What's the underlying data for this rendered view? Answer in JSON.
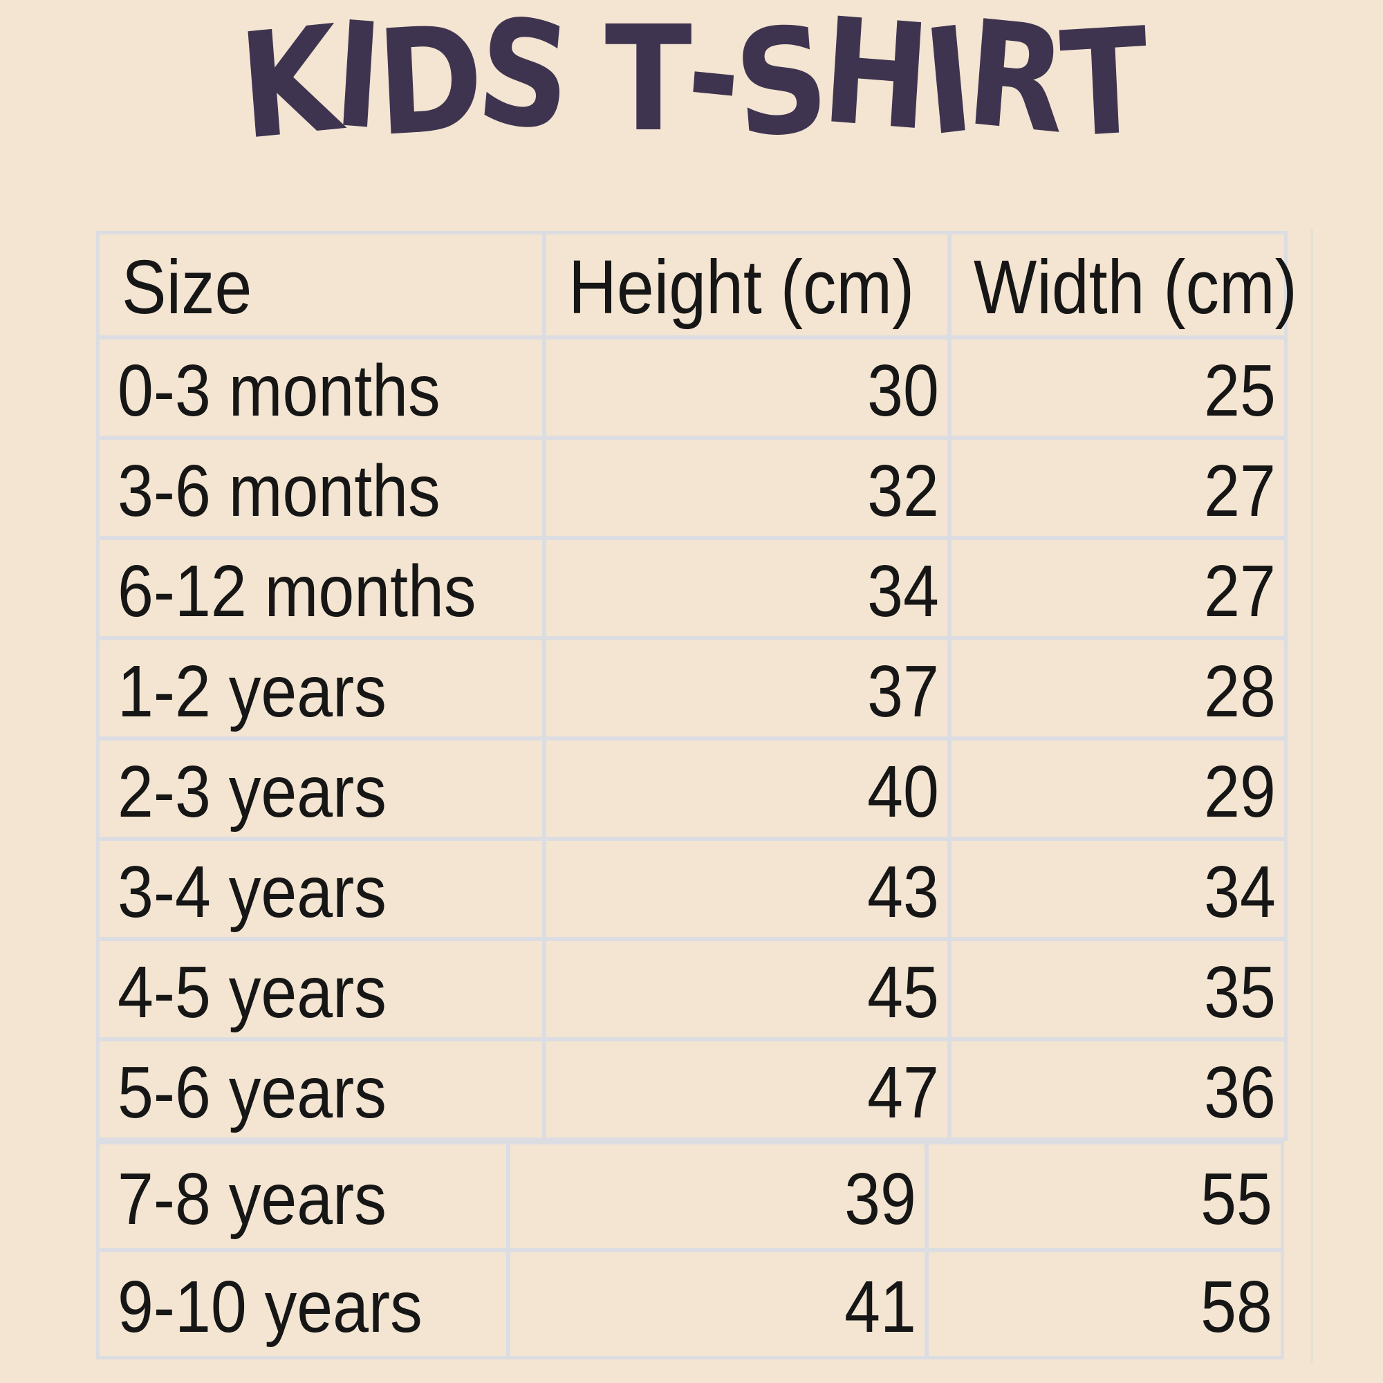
{
  "title": "KIDS T-SHIRT",
  "colors": {
    "background": "#f3e5d1",
    "title_text": "#3f3450",
    "table_text": "#161616",
    "table_border": "#dcdde2"
  },
  "table": {
    "headers": {
      "size": "Size",
      "height": "Height (cm)",
      "width": "Width (cm)"
    },
    "rows": [
      {
        "size": "0-3 months",
        "height": "30",
        "width": "25"
      },
      {
        "size": "3-6 months",
        "height": "32",
        "width": "27"
      },
      {
        "size": "6-12 months",
        "height": "34",
        "width": "27"
      },
      {
        "size": "1-2 years",
        "height": "37",
        "width": "28"
      },
      {
        "size": "2-3 years",
        "height": "40",
        "width": "29"
      },
      {
        "size": "3-4 years",
        "height": "43",
        "width": "34"
      },
      {
        "size": "4-5 years",
        "height": "45",
        "width": "35"
      },
      {
        "size": "5-6 years",
        "height": "47",
        "width": "36"
      },
      {
        "size": "7-8 years",
        "height": "39",
        "width": "55"
      },
      {
        "size": "9-10 years",
        "height": "41",
        "width": "58"
      }
    ]
  },
  "chart_data": {
    "type": "table",
    "title": "KIDS T-SHIRT",
    "columns": [
      "Size",
      "Height (cm)",
      "Width (cm)"
    ],
    "rows": [
      [
        "0-3 months",
        30,
        25
      ],
      [
        "3-6 months",
        32,
        27
      ],
      [
        "6-12 months",
        34,
        27
      ],
      [
        "1-2 years",
        37,
        28
      ],
      [
        "2-3 years",
        40,
        29
      ],
      [
        "3-4 years",
        43,
        34
      ],
      [
        "4-5 years",
        45,
        35
      ],
      [
        "5-6 years",
        47,
        36
      ],
      [
        "7-8 years",
        39,
        55
      ],
      [
        "9-10 years",
        41,
        58
      ]
    ]
  }
}
